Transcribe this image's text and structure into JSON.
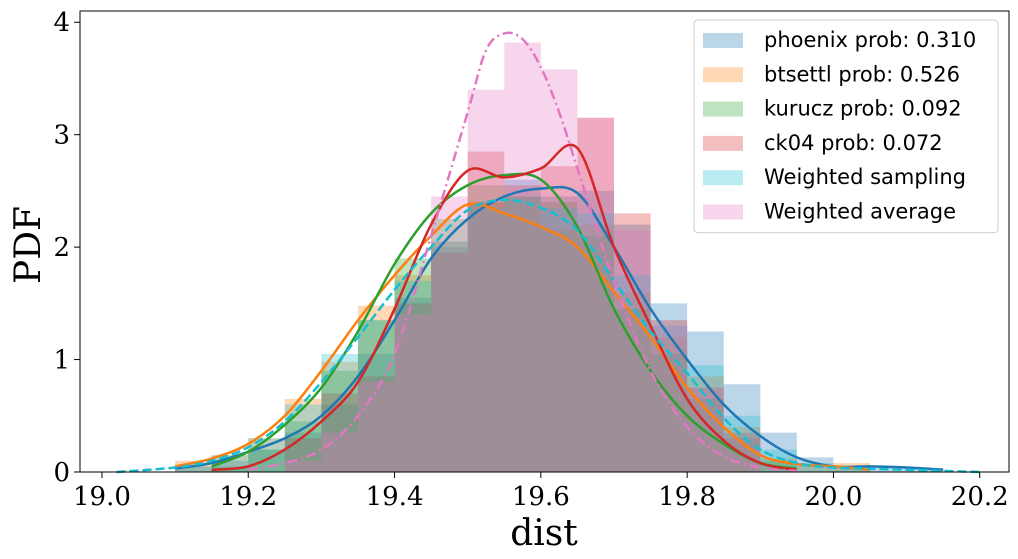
{
  "chart_data": {
    "type": "area",
    "xlabel": "dist",
    "ylabel": "PDF",
    "xlim": [
      18.97,
      20.24
    ],
    "ylim": [
      0,
      4.1
    ],
    "xticks": [
      "19.0",
      "19.2",
      "19.4",
      "19.6",
      "19.8",
      "20.0",
      "20.2"
    ],
    "xtick_values": [
      19.0,
      19.2,
      19.4,
      19.6,
      19.8,
      20.0,
      20.2
    ],
    "yticks": [
      "0",
      "1",
      "2",
      "3",
      "4"
    ],
    "ytick_values": [
      0,
      1,
      2,
      3,
      4
    ],
    "legend_position": "upper right",
    "series": [
      {
        "name": "phoenix prob: 0.310",
        "color": "#1f77b4",
        "style": "solid",
        "hist": {
          "edges": [
            19.1,
            19.15,
            19.2,
            19.25,
            19.3,
            19.35,
            19.4,
            19.45,
            19.5,
            19.55,
            19.6,
            19.65,
            19.7,
            19.75,
            19.8,
            19.85,
            19.9,
            19.95,
            20.0,
            20.05,
            20.1,
            20.15
          ],
          "values": [
            0.05,
            0.1,
            0.2,
            0.35,
            0.6,
            1.05,
            1.55,
            2.0,
            2.4,
            2.6,
            2.45,
            2.5,
            2.2,
            1.5,
            1.25,
            0.78,
            0.35,
            0.13,
            0.05,
            0.05,
            0.03
          ]
        },
        "kde": {
          "x": [
            19.1,
            19.15,
            19.2,
            19.25,
            19.3,
            19.35,
            19.4,
            19.45,
            19.5,
            19.55,
            19.6,
            19.65,
            19.7,
            19.75,
            19.8,
            19.85,
            19.9,
            19.95,
            20.0,
            20.05,
            20.1,
            20.15
          ],
          "y": [
            0.03,
            0.08,
            0.18,
            0.3,
            0.5,
            0.85,
            1.35,
            1.9,
            2.25,
            2.45,
            2.52,
            2.48,
            2.0,
            1.45,
            1.0,
            0.6,
            0.32,
            0.13,
            0.05,
            0.05,
            0.04,
            0.02
          ]
        }
      },
      {
        "name": "btsettl prob: 0.526",
        "color": "#ff7f0e",
        "style": "solid",
        "hist": {
          "edges": [
            19.1,
            19.15,
            19.2,
            19.25,
            19.3,
            19.35,
            19.4,
            19.45,
            19.5,
            19.55,
            19.6,
            19.65,
            19.7,
            19.75,
            19.8,
            19.85,
            19.9,
            19.95,
            20.0,
            20.05
          ],
          "values": [
            0.1,
            0.15,
            0.3,
            0.65,
            0.98,
            1.48,
            1.75,
            2.05,
            2.4,
            2.45,
            2.15,
            2.2,
            1.6,
            1.2,
            0.85,
            0.4,
            0.12,
            0.06,
            0.08
          ]
        },
        "kde": {
          "x": [
            19.1,
            19.15,
            19.2,
            19.25,
            19.3,
            19.35,
            19.4,
            19.45,
            19.5,
            19.55,
            19.6,
            19.65,
            19.7,
            19.75,
            19.8,
            19.85,
            19.9,
            19.95,
            20.0,
            20.05
          ],
          "y": [
            0.05,
            0.12,
            0.25,
            0.5,
            0.9,
            1.35,
            1.75,
            2.1,
            2.38,
            2.3,
            2.18,
            2.0,
            1.6,
            1.2,
            0.75,
            0.4,
            0.15,
            0.07,
            0.05,
            0.02
          ]
        }
      },
      {
        "name": "kurucz prob: 0.092",
        "color": "#2ca02c",
        "style": "solid",
        "hist": {
          "edges": [
            19.15,
            19.2,
            19.25,
            19.3,
            19.35,
            19.4,
            19.45,
            19.5,
            19.55,
            19.6,
            19.65,
            19.7,
            19.75,
            19.8,
            19.85,
            19.9,
            19.95
          ],
          "values": [
            0.05,
            0.2,
            0.45,
            0.9,
            1.35,
            1.9,
            2.25,
            2.55,
            2.45,
            2.4,
            2.1,
            1.45,
            1.05,
            0.65,
            0.35,
            0.1
          ]
        },
        "kde": {
          "x": [
            19.15,
            19.2,
            19.25,
            19.3,
            19.35,
            19.4,
            19.45,
            19.5,
            19.55,
            19.6,
            19.65,
            19.7,
            19.75,
            19.8,
            19.85,
            19.9,
            19.95
          ],
          "y": [
            0.05,
            0.18,
            0.42,
            0.75,
            1.25,
            1.85,
            2.3,
            2.55,
            2.64,
            2.6,
            2.18,
            1.45,
            0.9,
            0.5,
            0.25,
            0.08,
            0.03
          ]
        }
      },
      {
        "name": "ck04 prob: 0.072",
        "color": "#d62728",
        "style": "solid",
        "hist": {
          "edges": [
            19.25,
            19.3,
            19.35,
            19.4,
            19.45,
            19.5,
            19.55,
            19.6,
            19.65,
            19.7,
            19.75,
            19.8,
            19.85,
            19.9
          ],
          "values": [
            0.3,
            0.7,
            0.85,
            1.5,
            1.95,
            2.85,
            2.55,
            2.72,
            3.15,
            2.3,
            1.35,
            0.75,
            0.3
          ]
        },
        "kde": {
          "x": [
            19.15,
            19.2,
            19.25,
            19.3,
            19.35,
            19.4,
            19.45,
            19.5,
            19.55,
            19.6,
            19.65,
            19.7,
            19.75,
            19.8,
            19.85,
            19.9,
            19.95
          ],
          "y": [
            0.02,
            0.05,
            0.2,
            0.45,
            0.8,
            1.45,
            2.2,
            2.68,
            2.62,
            2.7,
            2.88,
            2.0,
            1.3,
            0.65,
            0.28,
            0.08,
            0.02
          ]
        }
      },
      {
        "name": "Weighted sampling",
        "color": "#17becf",
        "style": "dashed",
        "hist": {
          "edges": [
            19.1,
            19.15,
            19.2,
            19.25,
            19.3,
            19.35,
            19.4,
            19.45,
            19.5,
            19.55,
            19.6,
            19.65,
            19.7,
            19.75,
            19.8,
            19.85,
            19.9,
            19.95,
            20.0,
            20.05
          ],
          "values": [
            0.05,
            0.15,
            0.3,
            0.6,
            1.05,
            1.35,
            1.7,
            2.05,
            2.35,
            2.45,
            2.35,
            2.3,
            1.75,
            1.3,
            0.95,
            0.5,
            0.2,
            0.08,
            0.04
          ]
        },
        "kde": {
          "x": [
            19.02,
            19.1,
            19.15,
            19.2,
            19.25,
            19.3,
            19.35,
            19.4,
            19.45,
            19.5,
            19.55,
            19.6,
            19.65,
            19.7,
            19.75,
            19.8,
            19.85,
            19.9,
            19.95,
            20.0,
            20.1,
            20.2
          ],
          "y": [
            0.0,
            0.04,
            0.1,
            0.22,
            0.45,
            0.8,
            1.2,
            1.62,
            2.0,
            2.33,
            2.42,
            2.35,
            2.15,
            1.7,
            1.25,
            0.88,
            0.48,
            0.2,
            0.08,
            0.04,
            0.02,
            0.0
          ]
        }
      },
      {
        "name": "Weighted average",
        "color": "#e377c2",
        "style": "dashdot",
        "hist": {
          "edges": [
            19.25,
            19.3,
            19.35,
            19.4,
            19.45,
            19.5,
            19.55,
            19.6,
            19.65,
            19.7,
            19.75,
            19.8,
            19.85,
            19.9
          ],
          "values": [
            0.1,
            0.35,
            0.8,
            1.4,
            2.45,
            3.4,
            3.82,
            3.58,
            3.15,
            2.15,
            1.3,
            0.75,
            0.35
          ]
        },
        "kde": {
          "x": [
            19.2,
            19.25,
            19.3,
            19.35,
            19.4,
            19.45,
            19.5,
            19.525,
            19.55,
            19.575,
            19.6,
            19.625,
            19.65,
            19.7,
            19.75,
            19.8,
            19.85,
            19.9,
            19.95
          ],
          "y": [
            0.02,
            0.08,
            0.2,
            0.5,
            1.05,
            2.1,
            3.2,
            3.75,
            3.9,
            3.85,
            3.6,
            3.2,
            2.7,
            1.7,
            0.9,
            0.4,
            0.14,
            0.04,
            0.01
          ]
        }
      }
    ]
  }
}
